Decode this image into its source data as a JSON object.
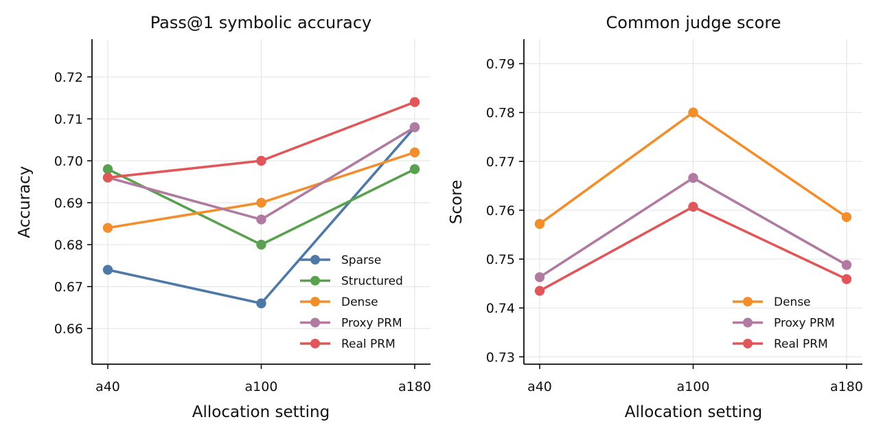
{
  "chart_data": [
    {
      "type": "line",
      "title": "Pass@1 symbolic accuracy",
      "xlabel": "Allocation setting",
      "ylabel": "Accuracy",
      "categories": [
        "a40",
        "a100",
        "a180"
      ],
      "ylim": [
        0.6515,
        0.729
      ],
      "yticks": [
        0.66,
        0.67,
        0.68,
        0.69,
        0.7,
        0.71,
        0.72
      ],
      "ytick_labels": [
        "0.66",
        "0.67",
        "0.68",
        "0.69",
        "0.70",
        "0.71",
        "0.72"
      ],
      "grid": true,
      "legend_position": "lower-right",
      "series": [
        {
          "name": "Sparse",
          "color": "#4e79a7",
          "values": [
            0.674,
            0.666,
            0.708
          ]
        },
        {
          "name": "Structured",
          "color": "#59a14f",
          "values": [
            0.698,
            0.68,
            0.698
          ]
        },
        {
          "name": "Dense",
          "color": "#f28e2b",
          "values": [
            0.684,
            0.69,
            0.702
          ]
        },
        {
          "name": "Proxy PRM",
          "color": "#b07aa1",
          "values": [
            0.696,
            0.686,
            0.708
          ]
        },
        {
          "name": "Real PRM",
          "color": "#e15759",
          "values": [
            0.696,
            0.7,
            0.714
          ]
        }
      ]
    },
    {
      "type": "line",
      "title": "Common judge score",
      "xlabel": "Allocation setting",
      "ylabel": "Score",
      "categories": [
        "a40",
        "a100",
        "a180"
      ],
      "ylim": [
        0.7285,
        0.795
      ],
      "yticks": [
        0.73,
        0.74,
        0.75,
        0.76,
        0.77,
        0.78,
        0.79
      ],
      "ytick_labels": [
        "0.73",
        "0.74",
        "0.75",
        "0.76",
        "0.77",
        "0.78",
        "0.79"
      ],
      "grid": true,
      "legend_position": "lower-right",
      "series": [
        {
          "name": "Dense",
          "color": "#f28e2b",
          "values": [
            0.7572,
            0.78,
            0.7586
          ]
        },
        {
          "name": "Proxy PRM",
          "color": "#b07aa1",
          "values": [
            0.7463,
            0.7666,
            0.7488
          ]
        },
        {
          "name": "Real PRM",
          "color": "#e15759",
          "values": [
            0.7435,
            0.7607,
            0.7459
          ]
        }
      ]
    }
  ]
}
